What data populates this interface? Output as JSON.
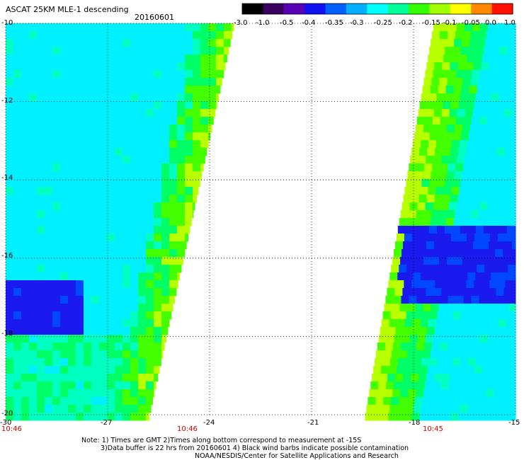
{
  "title": "ASCAT 25KM MLE-1 descending",
  "date": "20160601",
  "colorbar": {
    "labels": [
      "-3.0",
      "-1.0",
      "-0.5",
      "-0.4",
      "-0.35",
      "-0.3",
      "-0.25",
      "-0.2",
      "-0.15",
      "-0.1",
      "-0.05",
      "0.0",
      "1.0"
    ],
    "colors": [
      "#000000",
      "#3a0060",
      "#5a00b4",
      "#1010f0",
      "#0060ff",
      "#00b0ff",
      "#00ffff",
      "#00ff99",
      "#33ff00",
      "#a0ff00",
      "#ffff00",
      "#ff8800",
      "#ff1000"
    ]
  },
  "axes": {
    "lat_labels": [
      "-10",
      "-12",
      "-14",
      "-16",
      "-18",
      "-20"
    ],
    "lon_labels": [
      "-30",
      "-27",
      "-24",
      "-21",
      "-18",
      "-15"
    ],
    "lat_range": [
      -20,
      -10
    ],
    "lon_range": [
      -30,
      -15
    ]
  },
  "times": [
    {
      "label": "10:46",
      "lon": -30
    },
    {
      "label": "10:46",
      "lon": -25.6
    },
    {
      "label": "10:45",
      "lon": -17.3
    }
  ],
  "notes": {
    "line1": "Note: 1) Times are GMT 2)Times along bottom correspond to measurement at -15S",
    "line2": "3)Data buffer is 22 hrs from 20160601 4) Black wind barbs indicate possible contamination",
    "line3": "NOAA/NESDIS/Center for Satellite Applications and Research"
  }
}
